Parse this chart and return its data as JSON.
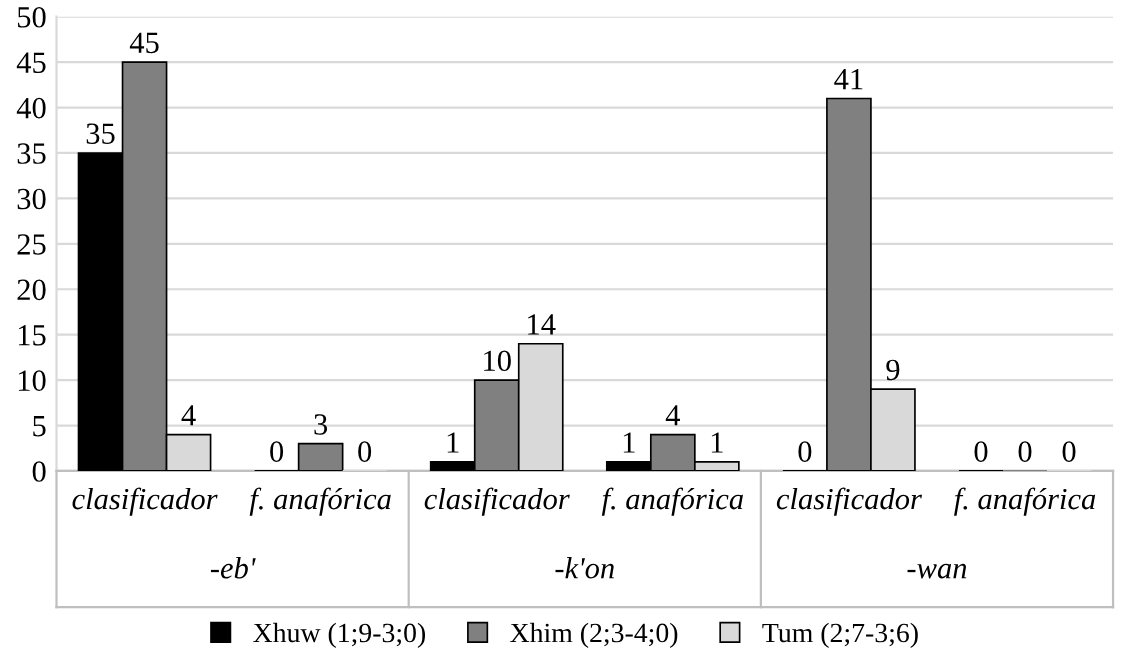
{
  "chart_data": {
    "type": "bar",
    "categories": [
      "clasificador",
      "f. anafórica",
      "clasificador",
      "f. anafórica",
      "clasificador",
      "f. anafórica"
    ],
    "annotations": [
      "-eb'",
      "-k'on",
      "-wan"
    ],
    "series": [
      {
        "name": "Xhuw (1;9-3;0)",
        "color": "#000000",
        "values": [
          35,
          0,
          1,
          1,
          0,
          0
        ]
      },
      {
        "name": "Xhim (2;3-4;0)",
        "color": "#808080",
        "values": [
          45,
          3,
          10,
          4,
          41,
          0
        ]
      },
      {
        "name": "Tum (2;7-3;6)",
        "color": "#d9d9d9",
        "values": [
          4,
          0,
          14,
          1,
          9,
          0
        ]
      }
    ],
    "ylim": [
      0,
      50
    ],
    "yticks": [
      0,
      5,
      10,
      15,
      20,
      25,
      30,
      35,
      40,
      45,
      50
    ],
    "grid": "y",
    "legend": "bottom",
    "data_labels": true
  }
}
